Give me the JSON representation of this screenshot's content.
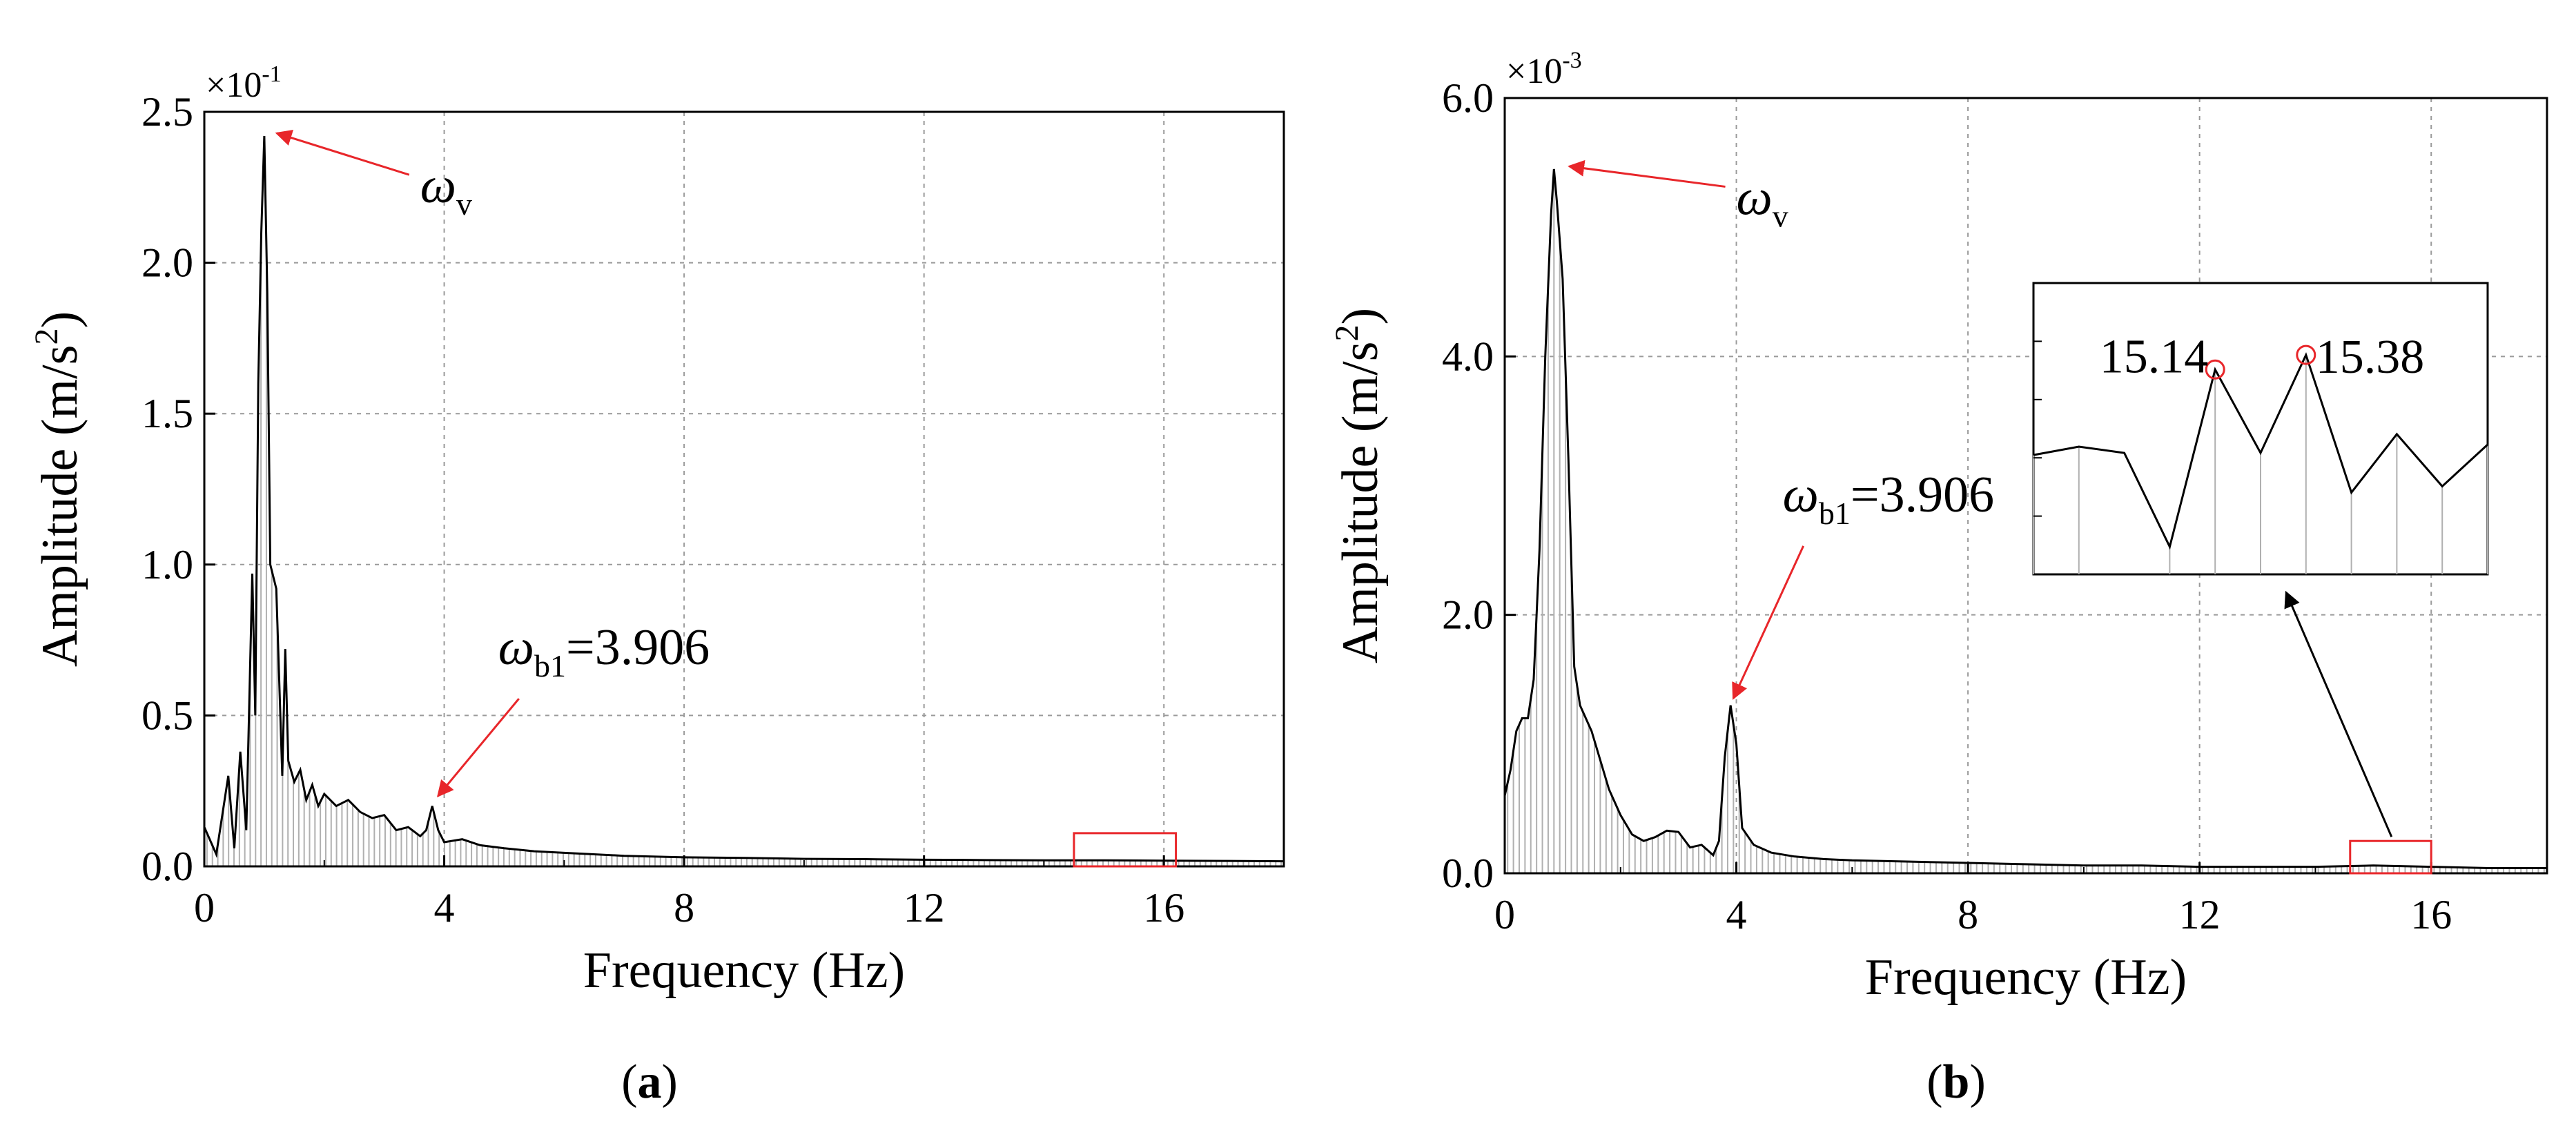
{
  "panels": {
    "a": {
      "caption": "(a)",
      "caption_bold": "a"
    },
    "b": {
      "caption": "(b)",
      "caption_bold": "b"
    }
  },
  "chart_data": [
    {
      "panel": "a",
      "type": "line",
      "fill": "vertical-stems",
      "xlabel": "Frequency (Hz)",
      "ylabel": "Amplitude (m/s²)",
      "ylabel_parts": {
        "text": "Amplitude (m/s",
        "sup": "2",
        "close": ")"
      },
      "y_multiplier": {
        "base": "×10",
        "exp": "-1"
      },
      "xlim": [
        0,
        18
      ],
      "ylim": [
        0,
        2.5
      ],
      "xticks": [
        0,
        4,
        8,
        12,
        16
      ],
      "xtick_labels": [
        "0",
        "4",
        "8",
        "12",
        "16"
      ],
      "yticks": [
        0,
        0.5,
        1.0,
        1.5,
        2.0,
        2.5
      ],
      "ytick_labels": [
        "0.0",
        "0.5",
        "1.0",
        "1.5",
        "2.0",
        "2.5"
      ],
      "grid": true,
      "highlight_box": {
        "x": [
          14.5,
          16.2
        ],
        "y": [
          0.0,
          0.11
        ]
      },
      "annotations": [
        {
          "symbol": "ω",
          "sub": "v",
          "suffix": "",
          "at": [
            1.0,
            2.42
          ],
          "label_at": [
            3.6,
            2.2
          ]
        },
        {
          "symbol": "ω",
          "sub": "b1",
          "suffix": "=3.906",
          "at": [
            3.85,
            0.21
          ],
          "label_at": [
            4.9,
            0.67
          ]
        }
      ],
      "series": [
        {
          "x": [
            0,
            0.2,
            0.4,
            0.5,
            0.6,
            0.7,
            0.8,
            0.85,
            0.9,
            0.95,
            1.0,
            1.05,
            1.1,
            1.2,
            1.3,
            1.35,
            1.4,
            1.5,
            1.6,
            1.7,
            1.8,
            1.9,
            2.0,
            2.2,
            2.4,
            2.6,
            2.8,
            3.0,
            3.2,
            3.4,
            3.6,
            3.7,
            3.8,
            3.9,
            4.0,
            4.3,
            4.6,
            5.0,
            5.5,
            6.0,
            7.0,
            8.0,
            9.0,
            10,
            11,
            12,
            13,
            14,
            15,
            16,
            17,
            18
          ],
          "y": [
            0.13,
            0.04,
            0.3,
            0.06,
            0.38,
            0.12,
            0.97,
            0.5,
            1.6,
            2.1,
            2.42,
            1.9,
            1.0,
            0.92,
            0.3,
            0.72,
            0.35,
            0.28,
            0.32,
            0.22,
            0.27,
            0.2,
            0.24,
            0.2,
            0.22,
            0.18,
            0.16,
            0.17,
            0.12,
            0.13,
            0.1,
            0.12,
            0.2,
            0.12,
            0.08,
            0.09,
            0.07,
            0.06,
            0.05,
            0.045,
            0.035,
            0.03,
            0.028,
            0.025,
            0.024,
            0.022,
            0.021,
            0.02,
            0.02,
            0.019,
            0.018,
            0.017
          ]
        }
      ]
    },
    {
      "panel": "b",
      "type": "line",
      "fill": "vertical-stems",
      "xlabel": "Frequency (Hz)",
      "ylabel": "Amplitude (m/s²)",
      "ylabel_parts": {
        "text": "Amplitude (m/s",
        "sup": "2",
        "close": ")"
      },
      "y_multiplier": {
        "base": "×10",
        "exp": "-3"
      },
      "xlim": [
        0,
        18
      ],
      "ylim": [
        0,
        6.0
      ],
      "xticks": [
        0,
        4,
        8,
        12,
        16
      ],
      "xtick_labels": [
        "0",
        "4",
        "8",
        "12",
        "16"
      ],
      "yticks": [
        0,
        2.0,
        4.0,
        6.0
      ],
      "ytick_labels": [
        "0.0",
        "2.0",
        "4.0",
        "6.0"
      ],
      "grid": true,
      "highlight_box": {
        "x": [
          14.6,
          16.0
        ],
        "y": [
          0.0,
          0.25
        ]
      },
      "annotations": [
        {
          "symbol": "ω",
          "sub": "v",
          "suffix": "",
          "at": [
            0.9,
            5.45
          ],
          "label_at": [
            4.0,
            5.1
          ]
        },
        {
          "symbol": "ω",
          "sub": "b1",
          "suffix": "=3.906",
          "at": [
            3.9,
            1.3
          ],
          "label_at": [
            4.8,
            2.8
          ]
        }
      ],
      "series": [
        {
          "x": [
            0,
            0.1,
            0.2,
            0.3,
            0.4,
            0.5,
            0.6,
            0.7,
            0.8,
            0.85,
            0.9,
            1.0,
            1.1,
            1.2,
            1.3,
            1.5,
            1.8,
            2.0,
            2.2,
            2.4,
            2.6,
            2.8,
            3.0,
            3.2,
            3.4,
            3.6,
            3.7,
            3.8,
            3.9,
            4.0,
            4.1,
            4.3,
            4.6,
            5.0,
            5.5,
            6,
            7,
            8,
            9,
            10,
            11,
            12,
            13,
            14,
            15,
            16,
            17,
            18
          ],
          "y": [
            0.6,
            0.8,
            1.1,
            1.2,
            1.2,
            1.5,
            2.5,
            4.0,
            5.1,
            5.45,
            5.2,
            4.6,
            3.2,
            1.6,
            1.3,
            1.1,
            0.65,
            0.45,
            0.3,
            0.25,
            0.28,
            0.33,
            0.32,
            0.2,
            0.22,
            0.14,
            0.25,
            0.9,
            1.3,
            1.0,
            0.35,
            0.22,
            0.16,
            0.13,
            0.11,
            0.1,
            0.09,
            0.08,
            0.07,
            0.06,
            0.06,
            0.05,
            0.05,
            0.05,
            0.06,
            0.05,
            0.04,
            0.04
          ]
        }
      ],
      "inset": {
        "points": [
          {
            "label": "15.14"
          },
          {
            "label": "15.38"
          }
        ],
        "x_index": [
          0,
          1,
          2,
          3,
          4,
          5,
          6,
          7,
          8,
          9,
          10
        ],
        "y_rel": [
          0.44,
          0.48,
          0.45,
          0.0,
          0.85,
          0.45,
          0.92,
          0.26,
          0.54,
          0.29,
          0.49
        ],
        "marked_index": [
          4,
          6
        ],
        "stem_index": [
          0,
          1,
          3,
          4,
          5,
          6,
          7,
          8,
          9,
          10
        ]
      }
    }
  ]
}
